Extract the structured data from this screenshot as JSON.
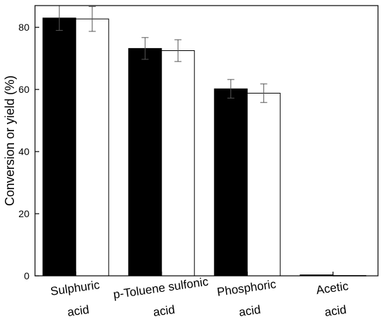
{
  "chart_data": {
    "type": "bar",
    "categories": [
      [
        "Sulphuric",
        "acid"
      ],
      [
        "p-Toluene sulfonic",
        "acid"
      ],
      [
        "Phosphoric",
        "acid"
      ],
      [
        "Acetic",
        "acid"
      ]
    ],
    "series": [
      {
        "fill": "#000000",
        "values": [
          83,
          73.2,
          60.2,
          0.3
        ],
        "errors": [
          4,
          3.5,
          3,
          0
        ]
      },
      {
        "fill": "#ffffff",
        "values": [
          82.7,
          72.5,
          58.8,
          0.1
        ],
        "errors": [
          4,
          3.5,
          3,
          0
        ]
      }
    ],
    "xlabel": "",
    "ylabel": "Conversion or yield (%)",
    "ylim": [
      0,
      87
    ],
    "yticks": [
      0,
      20,
      40,
      60,
      80
    ],
    "grid": false,
    "legend": "none"
  }
}
